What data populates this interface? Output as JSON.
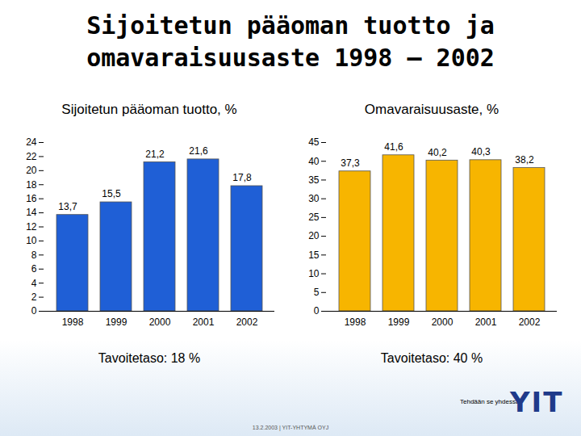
{
  "title": [
    "Sijoitetun pääoman tuotto ja",
    "omavaraisuusaste 1998 – 2002"
  ],
  "footer": {
    "slogan": "Tehdään se yhdessä",
    "logo": "YIT",
    "date_line": "13.2.2003  |  YIT-YHTYMÄ OYJ"
  },
  "chart_data": [
    {
      "type": "bar",
      "title": "Sijoitetun pääoman tuotto, %",
      "categories": [
        "1998",
        "1999",
        "2000",
        "2001",
        "2002"
      ],
      "values": [
        13.7,
        15.5,
        21.2,
        21.6,
        17.8
      ],
      "value_labels": [
        "13,7",
        "15,5",
        "21,2",
        "21,6",
        "17,8"
      ],
      "data_labels": true,
      "color": "#1f5fd6",
      "ylim": [
        0,
        24
      ],
      "yticks": [
        0,
        2,
        4,
        6,
        8,
        10,
        12,
        14,
        16,
        18,
        20,
        22,
        24
      ],
      "grid": false,
      "annotations": [
        "Tavoitetaso: 18 %"
      ]
    },
    {
      "type": "bar",
      "title": "Omavaraisuusaste, %",
      "categories": [
        "1998",
        "1999",
        "2000",
        "2001",
        "2002"
      ],
      "values": [
        37.3,
        41.6,
        40.2,
        40.3,
        38.2
      ],
      "value_labels": [
        "37,3",
        "41,6",
        "40,2",
        "40,3",
        "38,2"
      ],
      "data_labels": true,
      "color": "#f7b500",
      "ylim": [
        0,
        45
      ],
      "yticks": [
        0,
        5,
        10,
        15,
        20,
        25,
        30,
        35,
        40,
        45
      ],
      "grid": false,
      "annotations": [
        "Tavoitetaso: 40 %"
      ]
    }
  ]
}
